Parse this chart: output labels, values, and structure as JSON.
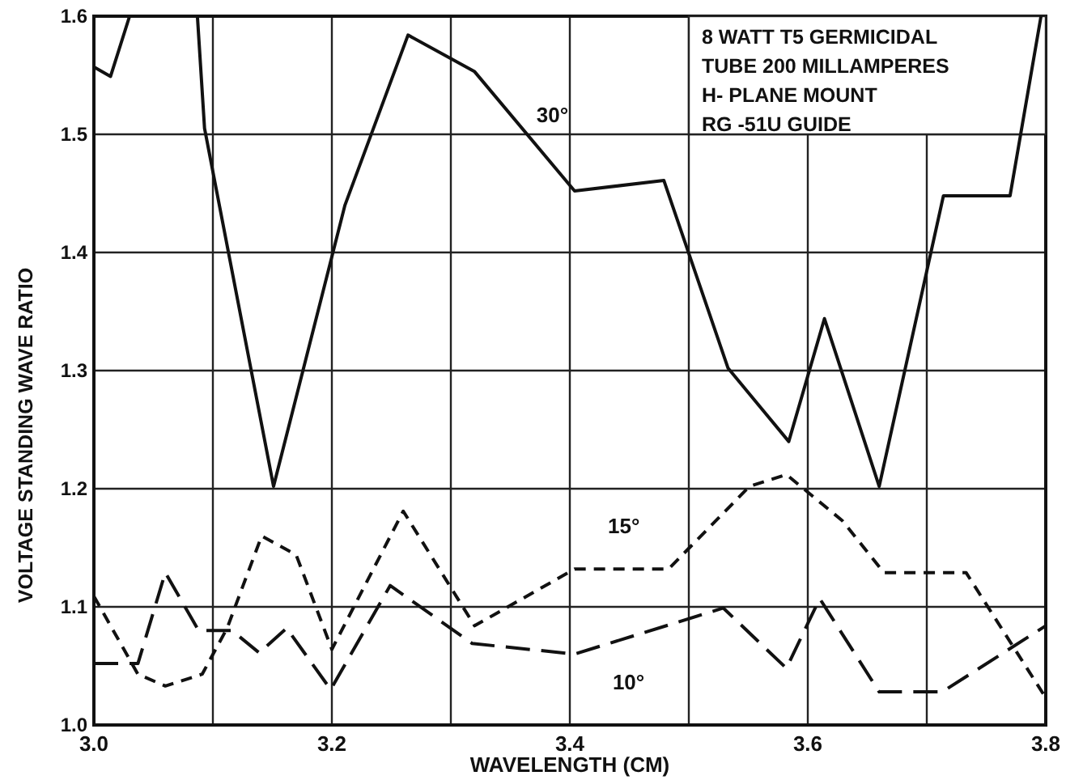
{
  "chart_data": {
    "type": "line",
    "xlabel": "WAVELENGTH (CM)",
    "ylabel": "VOLTAGE STANDING WAVE RATIO",
    "xlim": [
      3.0,
      3.8
    ],
    "ylim": [
      1.0,
      1.6
    ],
    "xticks": [
      {
        "value": 3.0,
        "label": "3.0"
      },
      {
        "value": 3.1,
        "label": null
      },
      {
        "value": 3.2,
        "label": "3.2"
      },
      {
        "value": 3.3,
        "label": null
      },
      {
        "value": 3.4,
        "label": "3.4"
      },
      {
        "value": 3.5,
        "label": null
      },
      {
        "value": 3.6,
        "label": "3.6"
      },
      {
        "value": 3.7,
        "label": null
      },
      {
        "value": 3.8,
        "label": "3.8"
      }
    ],
    "yticks": [
      {
        "value": 1.0,
        "label": "1.0"
      },
      {
        "value": 1.1,
        "label": "1.1"
      },
      {
        "value": 1.2,
        "label": "1.2"
      },
      {
        "value": 1.3,
        "label": "1.3"
      },
      {
        "value": 1.4,
        "label": "1.4"
      },
      {
        "value": 1.5,
        "label": "1.5"
      },
      {
        "value": 1.6,
        "label": "1.6"
      }
    ],
    "grid": true,
    "marker": "none",
    "annotations": [
      "8 WATT  T5 GERMICIDAL\nTUBE 200 MILLAMPERES\nH- PLANE  MOUNT\nRG -51U GUIDE"
    ],
    "series": [
      {
        "name": "30°",
        "color": "#111111",
        "line_style": "solid",
        "x": [
          3.0,
          3.014,
          3.03,
          3.06,
          3.087,
          3.093,
          3.151,
          3.211,
          3.264,
          3.32,
          3.404,
          3.479,
          3.533,
          3.584,
          3.614,
          3.66,
          3.714,
          3.77,
          3.796
        ],
        "values": [
          1.557,
          1.549,
          1.6,
          null,
          1.6,
          1.505,
          1.202,
          1.44,
          1.584,
          1.553,
          1.452,
          1.461,
          1.302,
          1.24,
          1.344,
          1.202,
          1.448,
          1.448,
          1.6
        ]
      },
      {
        "name": "15°",
        "color": "#111111",
        "line_style": "dotted",
        "x": [
          3.0,
          3.037,
          3.06,
          3.091,
          3.112,
          3.141,
          3.17,
          3.2,
          3.26,
          3.32,
          3.404,
          3.483,
          3.551,
          3.582,
          3.629,
          3.664,
          3.733,
          3.8
        ],
        "values": [
          1.109,
          1.043,
          1.033,
          1.043,
          1.082,
          1.16,
          1.144,
          1.064,
          1.181,
          1.084,
          1.132,
          1.132,
          1.202,
          1.212,
          1.173,
          1.129,
          1.129,
          1.023
        ]
      },
      {
        "name": "10°",
        "color": "#111111",
        "line_style": "dashed",
        "x": [
          3.0,
          3.037,
          3.06,
          3.088,
          3.116,
          3.139,
          3.162,
          3.199,
          3.249,
          3.318,
          3.404,
          3.529,
          3.582,
          3.61,
          3.66,
          3.713,
          3.8
        ],
        "values": [
          1.052,
          1.052,
          1.129,
          1.08,
          1.08,
          1.061,
          1.082,
          1.03,
          1.118,
          1.069,
          1.06,
          1.099,
          1.048,
          1.107,
          1.028,
          1.028,
          1.084
        ]
      }
    ]
  }
}
